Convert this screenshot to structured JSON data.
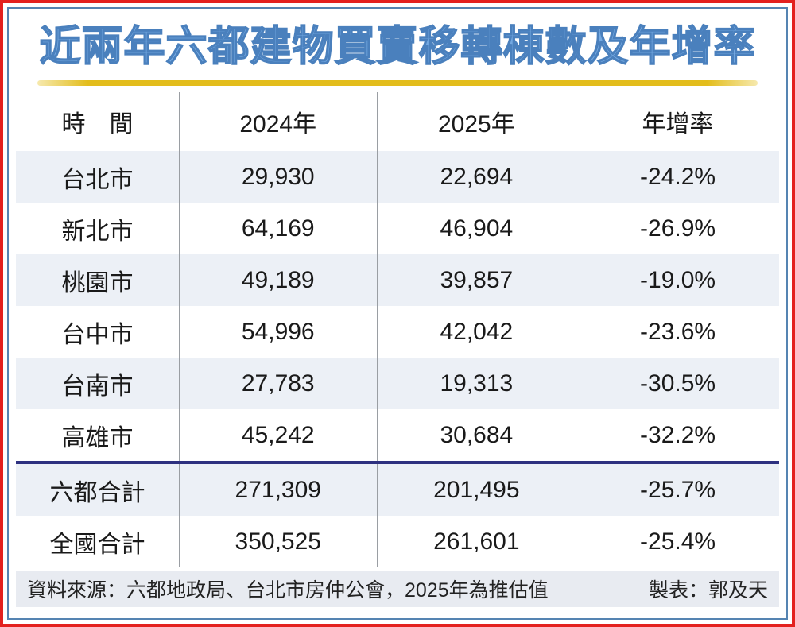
{
  "title": "近兩年六都建物買賣移轉棟數及年增率",
  "chart_data": {
    "type": "table",
    "title": "近兩年六都建物買賣移轉棟數及年增率",
    "columns": [
      "時　間",
      "2024年",
      "2025年",
      "年增率"
    ],
    "rows": [
      {
        "city": "台北市",
        "v2024": "29,930",
        "v2025": "22,694",
        "yoy": "-24.2%"
      },
      {
        "city": "新北市",
        "v2024": "64,169",
        "v2025": "46,904",
        "yoy": "-26.9%"
      },
      {
        "city": "桃園市",
        "v2024": "49,189",
        "v2025": "39,857",
        "yoy": "-19.0%"
      },
      {
        "city": "台中市",
        "v2024": "54,996",
        "v2025": "42,042",
        "yoy": "-23.6%"
      },
      {
        "city": "台南市",
        "v2024": "27,783",
        "v2025": "19,313",
        "yoy": "-30.5%"
      },
      {
        "city": "高雄市",
        "v2024": "45,242",
        "v2025": "30,684",
        "yoy": "-32.2%"
      },
      {
        "city": "六都合計",
        "v2024": "271,309",
        "v2025": "201,495",
        "yoy": "-25.7%"
      },
      {
        "city": "全國合計",
        "v2024": "350,525",
        "v2025": "261,601",
        "yoy": "-25.4%"
      }
    ],
    "categories": [
      "台北市",
      "新北市",
      "桃園市",
      "台中市",
      "台南市",
      "高雄市",
      "六都合計",
      "全國合計"
    ],
    "series": [
      {
        "name": "2024年",
        "values": [
          29930,
          64169,
          49189,
          54996,
          27783,
          45242,
          271309,
          350525
        ]
      },
      {
        "name": "2025年",
        "values": [
          22694,
          46904,
          39857,
          42042,
          19313,
          30684,
          201495,
          261601
        ]
      },
      {
        "name": "年增率(%)",
        "values": [
          -24.2,
          -26.9,
          -19.0,
          -23.6,
          -30.5,
          -32.2,
          -25.7,
          -25.4
        ]
      }
    ]
  },
  "footer": {
    "source": "資料來源：六都地政局、台北市房仲公會，2025年為推估值",
    "credit": "製表：郭及天"
  },
  "colors": {
    "frame_red": "#e3211f",
    "frame_blue": "#5584b2",
    "title_blue": "#74a9e2",
    "title_stroke": "#4a80bd",
    "gold_rule": "#e3bd1c",
    "row_alt_bg": "#ecf0f6",
    "footer_bg": "#e8ebf1",
    "total_rule_navy": "#2e3180",
    "divider_gray": "#9a9ea3"
  }
}
